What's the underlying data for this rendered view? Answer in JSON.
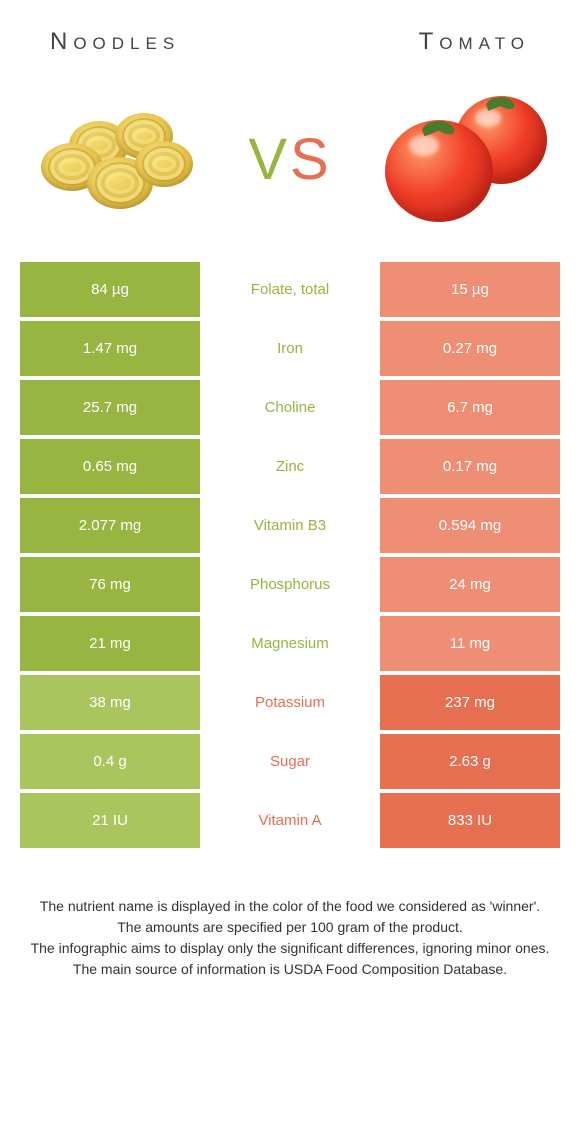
{
  "colors": {
    "green": "#97b540",
    "green_dim": "#aac45e",
    "red": "#e76f51",
    "red_dim": "#ee8e74"
  },
  "header": {
    "left": "Noodles",
    "right": "Tomato",
    "vs_v": "V",
    "vs_s": "S"
  },
  "table": {
    "rows": [
      {
        "left": "84 µg",
        "label": "Folate, total",
        "right": "15 µg",
        "winner": "left"
      },
      {
        "left": "1.47 mg",
        "label": "Iron",
        "right": "0.27 mg",
        "winner": "left"
      },
      {
        "left": "25.7 mg",
        "label": "Choline",
        "right": "6.7 mg",
        "winner": "left"
      },
      {
        "left": "0.65 mg",
        "label": "Zinc",
        "right": "0.17 mg",
        "winner": "left"
      },
      {
        "left": "2.077 mg",
        "label": "Vitamin B3",
        "right": "0.594 mg",
        "winner": "left"
      },
      {
        "left": "76 mg",
        "label": "Phosphorus",
        "right": "24 mg",
        "winner": "left"
      },
      {
        "left": "21 mg",
        "label": "Magnesium",
        "right": "11 mg",
        "winner": "left"
      },
      {
        "left": "38 mg",
        "label": "Potassium",
        "right": "237 mg",
        "winner": "right"
      },
      {
        "left": "0.4 g",
        "label": "Sugar",
        "right": "2.63 g",
        "winner": "right"
      },
      {
        "left": "21 IU",
        "label": "Vitamin A",
        "right": "833 IU",
        "winner": "right"
      }
    ]
  },
  "footer": {
    "l1": "The nutrient name is displayed in the color of the food we considered as 'winner'.",
    "l2": "The amounts are specified per 100 gram of the product.",
    "l3": "The infographic aims to display only the significant differences, ignoring minor ones.",
    "l4": "The main source of information is USDA Food Composition Database."
  }
}
